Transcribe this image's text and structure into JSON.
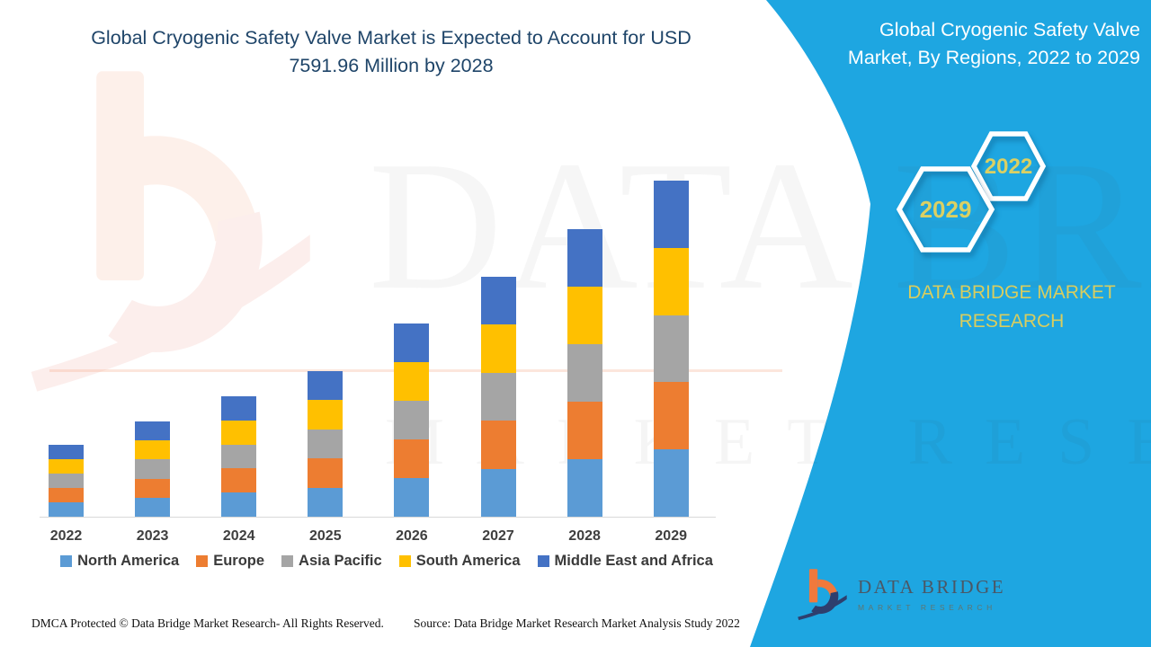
{
  "header": {
    "title_line1": "Global Cryogenic Safety Valve Market is Expected to Account for USD",
    "title_line2": "7591.96 Million by 2028",
    "title_color": "#1f4569"
  },
  "side_panel": {
    "background_color": "#1EA6E1",
    "title_line1": "Global Cryogenic Safety Valve",
    "title_line2": "Market, By Regions, 2022 to 2029",
    "hexagon_years": {
      "small": "2022",
      "large": "2029"
    },
    "hexagon_year_color": "#DBD063",
    "brand_line1": "DATA BRIDGE MARKET",
    "brand_line2": "RESEARCH",
    "brand_color": "#D8CD5F"
  },
  "chart_data": {
    "type": "bar",
    "stacked": true,
    "title": "Global Cryogenic Safety Valve Market, By Regions, 2022 to 2029",
    "categories": [
      "2022",
      "2023",
      "2024",
      "2025",
      "2026",
      "2027",
      "2028",
      "2029"
    ],
    "series": [
      {
        "name": "North America",
        "color": "#5B9BD5",
        "values": [
          16,
          21.2,
          26.8,
          32.4,
          43,
          53.4,
          64,
          74.8
        ]
      },
      {
        "name": "Europe",
        "color": "#ED7D31",
        "values": [
          16,
          21.2,
          26.8,
          32.4,
          43,
          53.4,
          64,
          74.8
        ]
      },
      {
        "name": "Asia Pacific",
        "color": "#A5A5A5",
        "values": [
          16,
          21.2,
          26.8,
          32.4,
          43,
          53.4,
          64,
          74.8
        ]
      },
      {
        "name": "South America",
        "color": "#FFC000",
        "values": [
          16,
          21.2,
          26.8,
          32.4,
          43,
          53.4,
          64,
          74.8
        ]
      },
      {
        "name": "Middle East and Africa",
        "color": "#4472C4",
        "values": [
          16,
          21.2,
          26.8,
          32.4,
          43,
          53.4,
          64,
          74.8
        ]
      }
    ],
    "stack_totals": [
      80,
      106,
      134,
      162,
      215,
      267,
      320,
      374
    ],
    "xlabel": "",
    "ylabel": "",
    "y_axis": "none (illustrative stacked bars, equal regional segments)",
    "grid": false,
    "legend_position": "bottom"
  },
  "watermark": {
    "line1": "DATA BRIDGE",
    "line2": "MARKET RESEARCH"
  },
  "logo": {
    "name": "DATA BRIDGE",
    "subtitle": "MARKET RESEARCH"
  },
  "footer": {
    "dmca": "DMCA Protected © Data Bridge Market Research- All Rights Reserved.",
    "source": "Source: Data Bridge Market Research Market Analysis Study 2022"
  }
}
